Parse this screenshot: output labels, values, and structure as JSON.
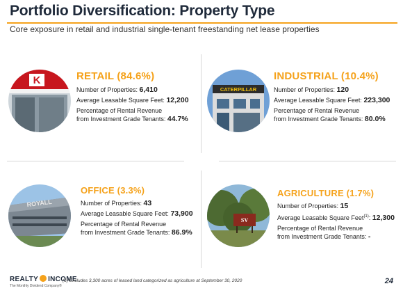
{
  "header": {
    "title": "Portfolio Diversification: Property Type",
    "subtitle": "Core exposure in retail and industrial single-tenant freestanding net lease properties"
  },
  "labels": {
    "num_properties": "Number of Properties: ",
    "avg_sqft": "Average Leasable Square Feet: ",
    "avg_sqft_note_mark": "(1)",
    "avg_sqft_suffix": ": ",
    "pct_line1": "Percentage of Rental Revenue",
    "pct_line2": "from Investment Grade Tenants: "
  },
  "segments": {
    "retail": {
      "heading": "RETAIL (84.6%)",
      "properties": "6,410",
      "sqft": "12,200",
      "ig_pct": "44.7%",
      "photo_sign": "K"
    },
    "industrial": {
      "heading": "INDUSTRIAL (10.4%)",
      "properties": "120",
      "sqft": "223,300",
      "ig_pct": "80.0%",
      "photo_sign": "CATERPILLAR"
    },
    "office": {
      "heading": "OFFICE (3.3%)",
      "properties": "43",
      "sqft": "73,900",
      "ig_pct": "86.9%",
      "photo_sign": "ROYALL"
    },
    "agriculture": {
      "heading": "AGRICULTURE (1.7%)",
      "properties": "15",
      "sqft": "12,300",
      "ig_pct": "-",
      "photo_sign": "SV"
    }
  },
  "footer": {
    "logo_left": "REALTY",
    "logo_right": "INCOME",
    "logo_tagline": "The Monthly Dividend Company®",
    "footnote": "(1) Excludes 3,300 acres of leased land categorized as agriculture at September 30, 2020",
    "page_number": "24"
  },
  "colors": {
    "accent": "#f5a21b",
    "title": "#1f2a3a",
    "divider": "#d6d6d6"
  }
}
